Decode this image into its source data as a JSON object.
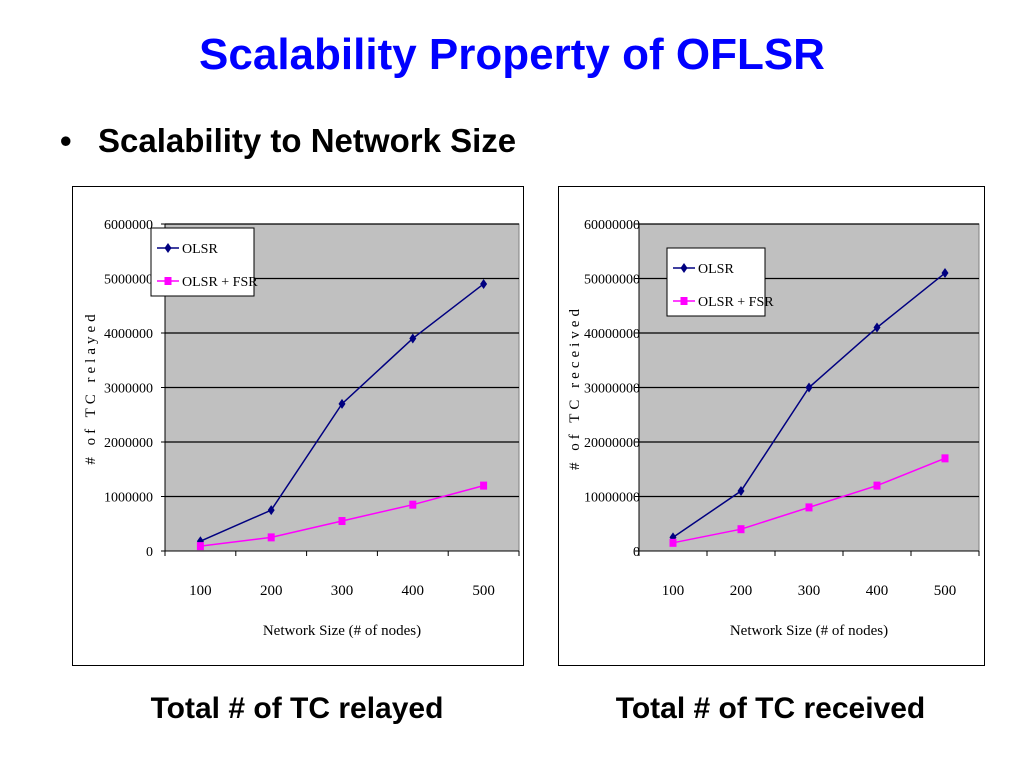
{
  "slide": {
    "title": "Scalability Property of OFLSR",
    "bullet_symbol": "•",
    "bullet_text": "Scalability to Network Size"
  },
  "captions": [
    "Total # of TC relayed",
    "Total # of TC received"
  ],
  "colors": {
    "title": "#0000ff",
    "plot_bg": "#c0c0c0",
    "olsr": "#000080",
    "fsr": "#ff00ff"
  },
  "chart_data": [
    {
      "type": "line",
      "title": "",
      "xlabel": "Network Size (# of nodes)",
      "ylabel": "# of TC relayed",
      "categories": [
        "100",
        "200",
        "300",
        "400",
        "500"
      ],
      "ylim": [
        0,
        6000000
      ],
      "yticks": [
        "0",
        "1000000",
        "2000000",
        "3000000",
        "4000000",
        "5000000",
        "6000000"
      ],
      "legend_position": "top-left",
      "grid": true,
      "series": [
        {
          "name": "OLSR",
          "color": "#000080",
          "marker": "diamond",
          "values": [
            180000,
            750000,
            2700000,
            3900000,
            4900000
          ]
        },
        {
          "name": "OLSR + FSR",
          "color": "#ff00ff",
          "marker": "square",
          "values": [
            90000,
            250000,
            550000,
            850000,
            1200000
          ]
        }
      ]
    },
    {
      "type": "line",
      "title": "",
      "xlabel": "Network Size (# of nodes)",
      "ylabel": "# of TC received",
      "categories": [
        "100",
        "200",
        "300",
        "400",
        "500"
      ],
      "ylim": [
        0,
        60000000
      ],
      "yticks": [
        "0",
        "10000000",
        "20000000",
        "30000000",
        "40000000",
        "50000000",
        "60000000"
      ],
      "legend_position": "top-left",
      "grid": true,
      "series": [
        {
          "name": "OLSR",
          "color": "#000080",
          "marker": "diamond",
          "values": [
            2500000,
            11000000,
            30000000,
            41000000,
            51000000
          ]
        },
        {
          "name": "OLSR + FSR",
          "color": "#ff00ff",
          "marker": "square",
          "values": [
            1500000,
            4000000,
            8000000,
            12000000,
            17000000
          ]
        }
      ]
    }
  ]
}
